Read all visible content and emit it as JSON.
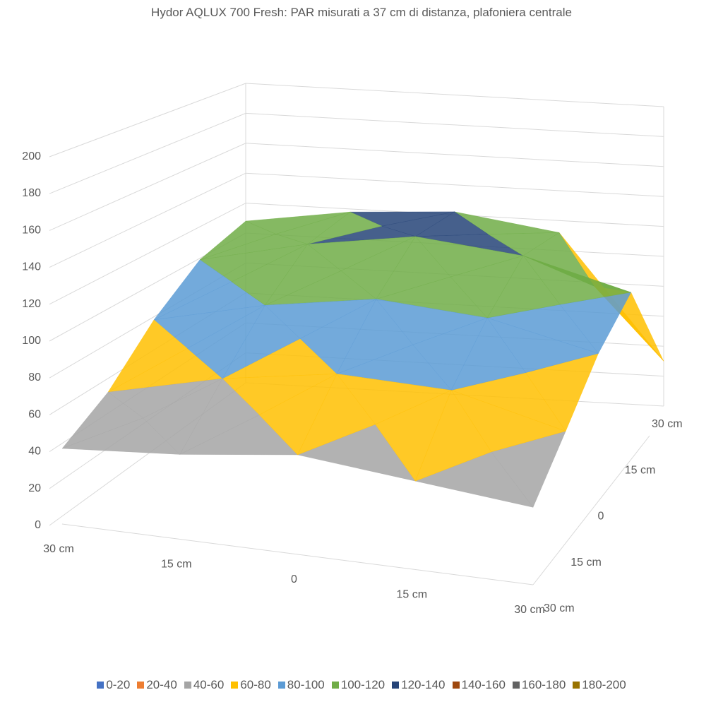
{
  "chart_data": {
    "type": "surface",
    "title": "Hydor AQLUX 700 Fresh: PAR misurati a 37 cm di distanza, plafoniera centrale",
    "x_tick_labels": [
      "30 cm",
      "15 cm",
      "0",
      "15 cm",
      "30 cm"
    ],
    "depth_tick_labels": [
      "30 cm",
      "15 cm",
      "0",
      "15 cm",
      "30 cm"
    ],
    "z_tick_labels": [
      "0",
      "20",
      "40",
      "60",
      "80",
      "100",
      "120",
      "140",
      "160",
      "180",
      "200"
    ],
    "zlim": [
      0,
      200
    ],
    "grid": true,
    "legend_position": "bottom",
    "values_front_to_back": [
      [
        41,
        46,
        54,
        48,
        42
      ],
      [
        55,
        70,
        80,
        78,
        62
      ],
      [
        80,
        95,
        105,
        100,
        85
      ],
      [
        100,
        115,
        125,
        118,
        100
      ],
      [
        108,
        118,
        122,
        112,
        30
      ]
    ],
    "bands": [
      {
        "label": "0-20",
        "color": "#4472C4"
      },
      {
        "label": "20-40",
        "color": "#ED7D31"
      },
      {
        "label": "40-60",
        "color": "#A5A5A5"
      },
      {
        "label": "60-80",
        "color": "#FFC000"
      },
      {
        "label": "80-100",
        "color": "#5B9BD5"
      },
      {
        "label": "100-120",
        "color": "#70AD47"
      },
      {
        "label": "120-140",
        "color": "#264478"
      },
      {
        "label": "140-160",
        "color": "#9E480E"
      },
      {
        "label": "160-180",
        "color": "#636363"
      },
      {
        "label": "180-200",
        "color": "#997300"
      }
    ]
  }
}
